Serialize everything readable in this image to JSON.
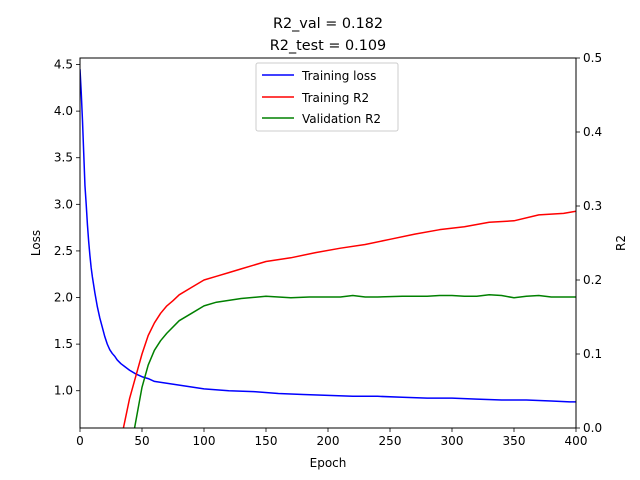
{
  "chart_data": {
    "type": "line",
    "title_lines": [
      "R2_val = 0.182",
      "R2_test = 0.109"
    ],
    "xlabel": "Epoch",
    "ylabel_left": "Loss",
    "ylabel_right": "R2",
    "xlim": [
      0,
      400
    ],
    "ylim_left": [
      0.6,
      4.57
    ],
    "ylim_right": [
      0.0,
      0.5
    ],
    "x_ticks": [
      0,
      50,
      100,
      150,
      200,
      250,
      300,
      350,
      400
    ],
    "y_ticks_left": [
      1.0,
      1.5,
      2.0,
      2.5,
      3.0,
      3.5,
      4.0,
      4.5
    ],
    "y_ticks_left_labels": [
      "1.0",
      "1.5",
      "2.0",
      "2.5",
      "3.0",
      "3.5",
      "4.0",
      "4.5"
    ],
    "y_ticks_right": [
      0.0,
      0.1,
      0.2,
      0.3,
      0.4,
      0.5
    ],
    "y_ticks_right_labels": [
      "0.0",
      "0.1",
      "0.2",
      "0.3",
      "0.4",
      "0.5"
    ],
    "grid": false,
    "legend_position": "top-center",
    "series": [
      {
        "name": "Training loss",
        "axis": "left",
        "color": "#0000ff",
        "x": [
          0,
          1,
          2,
          3,
          4,
          5,
          6,
          7,
          8,
          9,
          10,
          12,
          14,
          16,
          18,
          20,
          22,
          24,
          26,
          28,
          30,
          33,
          36,
          40,
          45,
          50,
          55,
          60,
          70,
          80,
          90,
          100,
          120,
          140,
          160,
          180,
          200,
          220,
          240,
          260,
          280,
          300,
          320,
          340,
          360,
          380,
          395,
          400
        ],
        "y": [
          4.45,
          4.2,
          3.9,
          3.55,
          3.2,
          3.0,
          2.78,
          2.6,
          2.45,
          2.32,
          2.22,
          2.05,
          1.9,
          1.78,
          1.68,
          1.58,
          1.5,
          1.44,
          1.4,
          1.37,
          1.33,
          1.29,
          1.26,
          1.22,
          1.18,
          1.15,
          1.13,
          1.1,
          1.08,
          1.06,
          1.04,
          1.02,
          1.0,
          0.99,
          0.97,
          0.96,
          0.95,
          0.94,
          0.94,
          0.93,
          0.92,
          0.92,
          0.91,
          0.9,
          0.9,
          0.89,
          0.88,
          0.88
        ]
      },
      {
        "name": "Training R2",
        "axis": "right",
        "color": "#ff0000",
        "x": [
          35,
          40,
          45,
          50,
          55,
          60,
          65,
          70,
          75,
          80,
          90,
          100,
          110,
          120,
          130,
          140,
          150,
          170,
          190,
          210,
          230,
          250,
          270,
          290,
          310,
          330,
          350,
          370,
          390,
          400
        ],
        "y": [
          0.0,
          0.04,
          0.07,
          0.1,
          0.125,
          0.142,
          0.155,
          0.165,
          0.172,
          0.18,
          0.19,
          0.2,
          0.205,
          0.21,
          0.215,
          0.22,
          0.225,
          0.23,
          0.237,
          0.243,
          0.248,
          0.255,
          0.262,
          0.268,
          0.272,
          0.278,
          0.28,
          0.288,
          0.29,
          0.293
        ]
      },
      {
        "name": "Validation R2",
        "axis": "right",
        "color": "#008000",
        "x": [
          44,
          50,
          55,
          60,
          65,
          70,
          80,
          90,
          100,
          110,
          130,
          150,
          170,
          185,
          200,
          210,
          220,
          230,
          240,
          260,
          280,
          290,
          300,
          310,
          320,
          330,
          340,
          350,
          360,
          370,
          380,
          390,
          400
        ],
        "y": [
          0.0,
          0.055,
          0.085,
          0.105,
          0.118,
          0.128,
          0.145,
          0.155,
          0.165,
          0.17,
          0.175,
          0.178,
          0.176,
          0.177,
          0.177,
          0.177,
          0.179,
          0.177,
          0.177,
          0.178,
          0.178,
          0.179,
          0.179,
          0.178,
          0.178,
          0.18,
          0.179,
          0.176,
          0.178,
          0.179,
          0.177,
          0.177,
          0.177
        ]
      }
    ]
  }
}
